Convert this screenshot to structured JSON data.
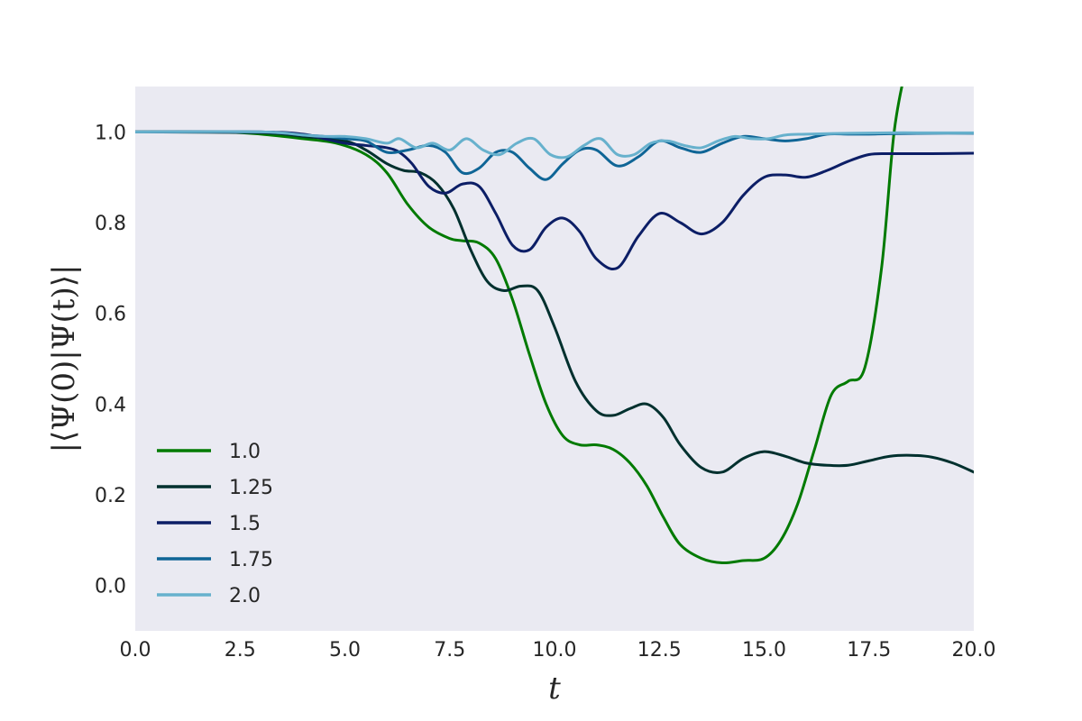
{
  "chart_data": {
    "type": "line",
    "title": "",
    "xlabel": "t",
    "ylabel": "|⟨Ψ(0)|Ψ(t)⟩|",
    "xlim": [
      0,
      20
    ],
    "ylim": [
      -0.1,
      1.1
    ],
    "xticks": [
      0,
      2.5,
      5,
      7.5,
      10,
      12.5,
      15,
      17.5,
      20
    ],
    "xtick_labels": [
      "0.0",
      "2.5",
      "5.0",
      "7.5",
      "10.0",
      "12.5",
      "15.0",
      "17.5",
      "20.0"
    ],
    "yticks": [
      0,
      0.2,
      0.4,
      0.6,
      0.8,
      1.0
    ],
    "ytick_labels": [
      "0.0",
      "0.2",
      "0.4",
      "0.6",
      "0.8",
      "1.0"
    ],
    "grid": false,
    "legend_position": "lower-left",
    "series": [
      {
        "name": "1.0",
        "color": "#007a00",
        "x": [
          0,
          2,
          3,
          4,
          4.8,
          5.5,
          6,
          6.5,
          7,
          7.5,
          7.8,
          8.2,
          8.6,
          9,
          9.4,
          9.8,
          10.2,
          10.6,
          11,
          11.4,
          11.8,
          12.2,
          12.6,
          13,
          13.5,
          14,
          14.5,
          15,
          15.4,
          15.8,
          16.2,
          16.6,
          17,
          17.4,
          17.8,
          18.1,
          18.4
        ],
        "y": [
          1.0,
          1.0,
          0.995,
          0.985,
          0.975,
          0.95,
          0.91,
          0.84,
          0.79,
          0.765,
          0.76,
          0.755,
          0.72,
          0.63,
          0.51,
          0.4,
          0.33,
          0.31,
          0.31,
          0.3,
          0.27,
          0.22,
          0.15,
          0.09,
          0.06,
          0.05,
          0.055,
          0.06,
          0.1,
          0.18,
          0.3,
          0.42,
          0.45,
          0.48,
          0.7,
          1.0,
          1.15
        ]
      },
      {
        "name": "1.25",
        "color": "#00302e",
        "x": [
          0,
          3,
          4,
          5,
          5.5,
          6,
          6.4,
          6.8,
          7.2,
          7.6,
          8,
          8.4,
          8.8,
          9.2,
          9.6,
          10,
          10.5,
          11,
          11.4,
          11.8,
          12.2,
          12.6,
          13,
          13.5,
          14,
          14.5,
          15,
          15.5,
          16,
          16.5,
          17,
          17.5,
          18,
          18.5,
          19,
          19.5,
          20
        ],
        "y": [
          1.0,
          0.998,
          0.99,
          0.98,
          0.96,
          0.93,
          0.915,
          0.91,
          0.885,
          0.83,
          0.74,
          0.67,
          0.65,
          0.66,
          0.65,
          0.57,
          0.45,
          0.385,
          0.375,
          0.39,
          0.4,
          0.37,
          0.31,
          0.26,
          0.25,
          0.28,
          0.295,
          0.285,
          0.27,
          0.265,
          0.265,
          0.275,
          0.285,
          0.287,
          0.283,
          0.27,
          0.25
        ]
      },
      {
        "name": "1.5",
        "color": "#0c1e66",
        "x": [
          0,
          3,
          4,
          4.5,
          5,
          5.5,
          6,
          6.3,
          6.6,
          7,
          7.4,
          7.8,
          8.2,
          8.6,
          9,
          9.4,
          9.8,
          10.2,
          10.6,
          11,
          11.5,
          12,
          12.5,
          13,
          13.5,
          14,
          14.5,
          15,
          15.5,
          16,
          16.5,
          17,
          17.5,
          18,
          19,
          20
        ],
        "y": [
          1.0,
          1.0,
          0.995,
          0.985,
          0.975,
          0.97,
          0.965,
          0.955,
          0.93,
          0.88,
          0.865,
          0.885,
          0.88,
          0.82,
          0.75,
          0.74,
          0.79,
          0.81,
          0.78,
          0.72,
          0.7,
          0.77,
          0.82,
          0.8,
          0.775,
          0.8,
          0.86,
          0.9,
          0.905,
          0.9,
          0.915,
          0.935,
          0.95,
          0.952,
          0.952,
          0.953
        ]
      },
      {
        "name": "1.75",
        "color": "#0f6596",
        "x": [
          0,
          3,
          4,
          4.5,
          5,
          5.5,
          6,
          6.5,
          7,
          7.4,
          7.8,
          8.2,
          8.6,
          9,
          9.4,
          9.8,
          10.2,
          10.6,
          11,
          11.5,
          12,
          12.5,
          13,
          13.5,
          14,
          14.5,
          15,
          15.5,
          16,
          16.5,
          17,
          17.5,
          18,
          19,
          20
        ],
        "y": [
          1.0,
          1.0,
          0.993,
          0.99,
          0.985,
          0.98,
          0.955,
          0.96,
          0.97,
          0.955,
          0.91,
          0.92,
          0.955,
          0.955,
          0.92,
          0.895,
          0.93,
          0.96,
          0.96,
          0.925,
          0.945,
          0.98,
          0.965,
          0.955,
          0.975,
          0.99,
          0.985,
          0.98,
          0.985,
          0.995,
          0.995,
          0.995,
          0.996,
          0.997,
          0.997
        ]
      },
      {
        "name": "2.0",
        "color": "#67b1cd",
        "x": [
          0,
          3,
          4,
          4.5,
          5,
          5.5,
          6,
          6.3,
          6.7,
          7.1,
          7.5,
          7.9,
          8.3,
          8.7,
          9.1,
          9.5,
          9.9,
          10.3,
          10.7,
          11.1,
          11.5,
          11.9,
          12.3,
          12.7,
          13.1,
          13.5,
          13.9,
          14.3,
          14.7,
          15.1,
          15.5,
          16,
          17,
          18,
          19,
          20
        ],
        "y": [
          1.0,
          1.0,
          0.993,
          0.99,
          0.99,
          0.985,
          0.975,
          0.985,
          0.965,
          0.975,
          0.96,
          0.985,
          0.96,
          0.95,
          0.975,
          0.985,
          0.95,
          0.945,
          0.97,
          0.985,
          0.95,
          0.95,
          0.975,
          0.98,
          0.97,
          0.965,
          0.98,
          0.99,
          0.985,
          0.985,
          0.993,
          0.995,
          0.997,
          0.998,
          0.998,
          0.998
        ]
      }
    ]
  }
}
